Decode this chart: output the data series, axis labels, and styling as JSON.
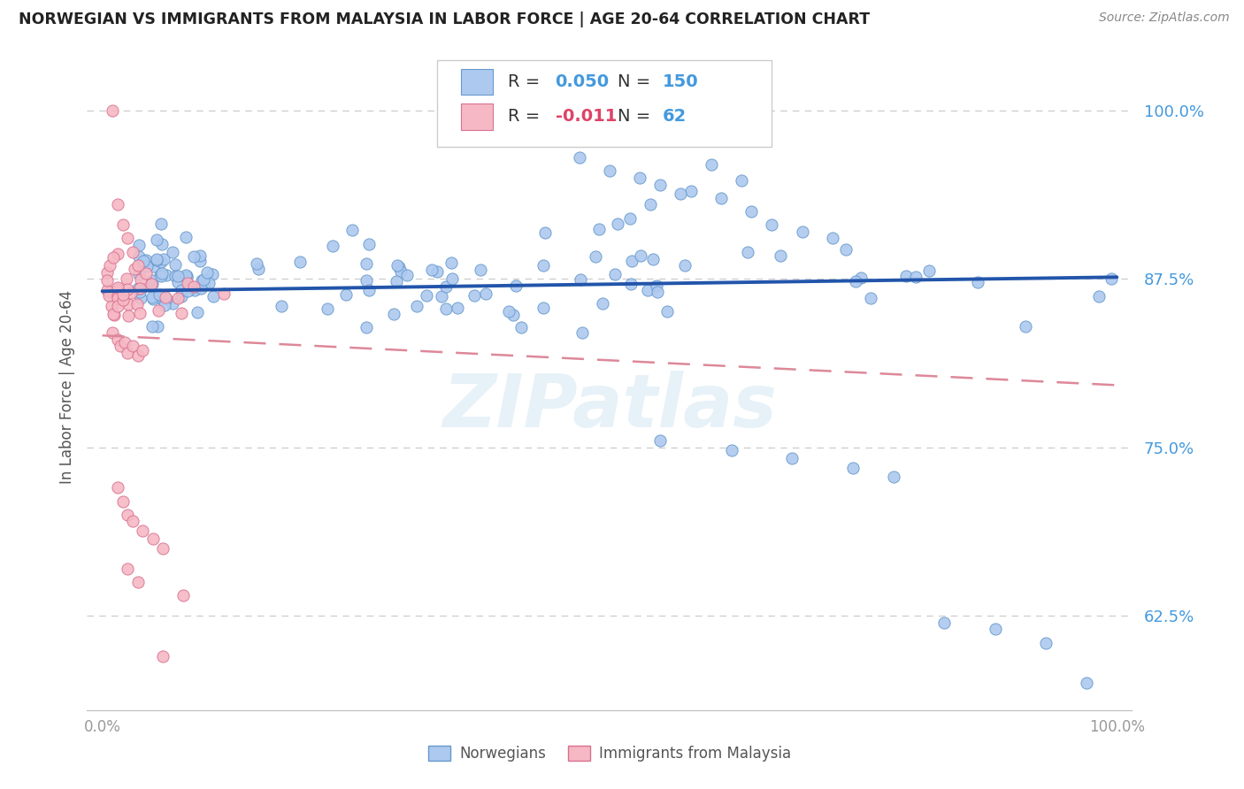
{
  "title": "NORWEGIAN VS IMMIGRANTS FROM MALAYSIA IN LABOR FORCE | AGE 20-64 CORRELATION CHART",
  "source": "Source: ZipAtlas.com",
  "ylabel": "In Labor Force | Age 20-64",
  "xlim": [
    0.0,
    1.0
  ],
  "ylim": [
    0.555,
    1.035
  ],
  "yticks": [
    0.625,
    0.75,
    0.875,
    1.0
  ],
  "ytick_labels": [
    "62.5%",
    "75.0%",
    "87.5%",
    "100.0%"
  ],
  "norwegian_color": "#adc9ef",
  "norwegian_edge_color": "#6699cc",
  "malaysia_color": "#f5b8c4",
  "malaysia_edge_color": "#d97090",
  "norwegian_R": 0.05,
  "norwegian_N": 150,
  "malaysia_R": -0.011,
  "malaysia_N": 62,
  "trend_norwegian_color": "#2255aa",
  "trend_malaysia_color": "#dd8899",
  "background_color": "#ffffff",
  "grid_color": "#cccccc",
  "watermark": "ZIPatlas",
  "r_n_text_color": "#4499dd",
  "r_neg_color": "#dd4466",
  "legend_text_color": "#333333"
}
